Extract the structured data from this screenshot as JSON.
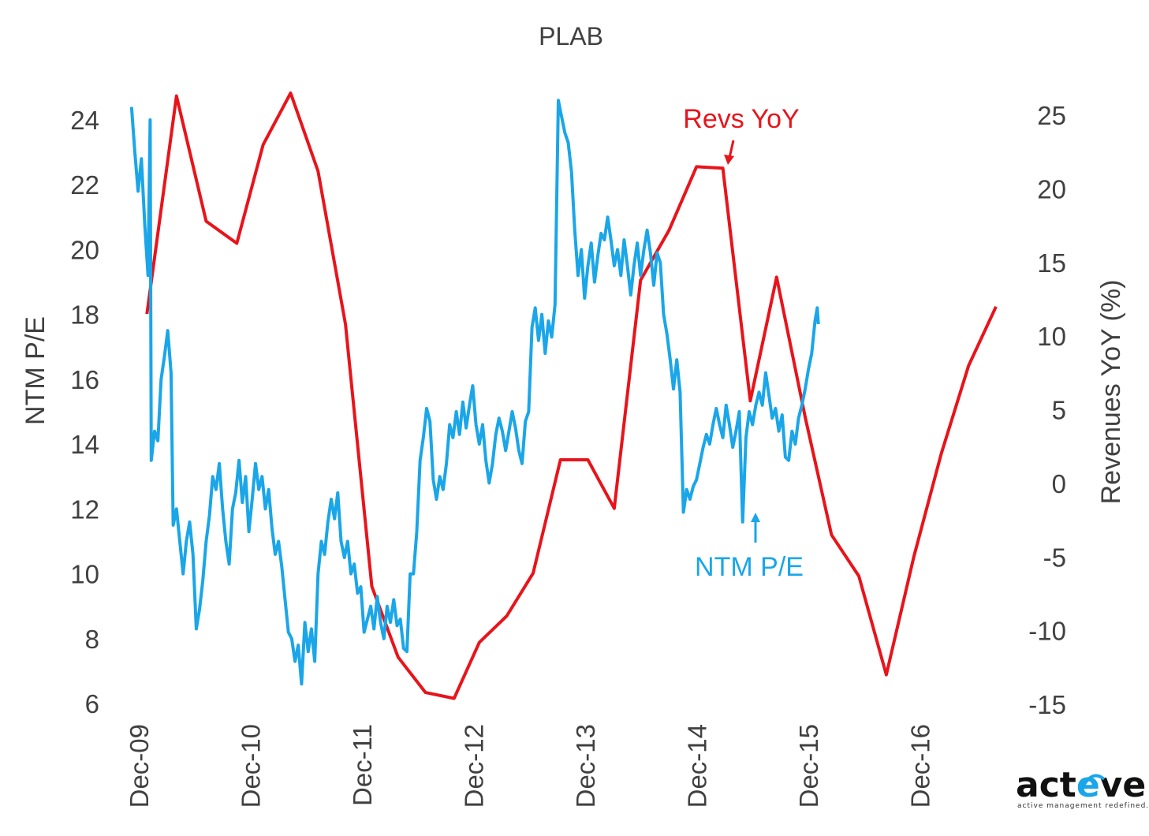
{
  "chart_data": {
    "type": "line",
    "title": "PLAB",
    "ylabel_left": "NTM P/E",
    "ylabel_right": "Revenues YoY (%)",
    "x_tick_labels": [
      "Dec-09",
      "Dec-10",
      "Dec-11",
      "Dec-12",
      "Dec-13",
      "Dec-14",
      "Dec-15",
      "Dec-16"
    ],
    "xlim_years": [
      2009.9,
      2017.85
    ],
    "ylim_left": [
      6,
      25
    ],
    "ylim_right": [
      -15,
      26
    ],
    "yticks_left": [
      6,
      8,
      10,
      12,
      14,
      16,
      18,
      20,
      22,
      24
    ],
    "yticks_right": [
      -15,
      -10,
      -5,
      0,
      5,
      10,
      15,
      20,
      25
    ],
    "grid": false,
    "series": [
      {
        "name": "NTM P/E",
        "axis": "left",
        "color": "#1aa6e8",
        "points": [
          [
            2009.92,
            24.4
          ],
          [
            2009.95,
            23.0
          ],
          [
            2009.98,
            21.8
          ],
          [
            2010.01,
            22.8
          ],
          [
            2010.04,
            20.8
          ],
          [
            2010.07,
            19.2
          ],
          [
            2010.09,
            24.0
          ],
          [
            2010.1,
            13.5
          ],
          [
            2010.13,
            14.4
          ],
          [
            2010.16,
            14.1
          ],
          [
            2010.19,
            16.0
          ],
          [
            2010.22,
            16.7
          ],
          [
            2010.25,
            17.5
          ],
          [
            2010.28,
            16.2
          ],
          [
            2010.3,
            11.5
          ],
          [
            2010.33,
            12.0
          ],
          [
            2010.36,
            11.0
          ],
          [
            2010.39,
            10.0
          ],
          [
            2010.42,
            11.0
          ],
          [
            2010.45,
            11.6
          ],
          [
            2010.48,
            10.6
          ],
          [
            2010.51,
            8.3
          ],
          [
            2010.54,
            8.9
          ],
          [
            2010.57,
            9.8
          ],
          [
            2010.6,
            11.0
          ],
          [
            2010.63,
            11.8
          ],
          [
            2010.66,
            13.0
          ],
          [
            2010.69,
            12.6
          ],
          [
            2010.72,
            13.4
          ],
          [
            2010.75,
            12.0
          ],
          [
            2010.78,
            11.0
          ],
          [
            2010.81,
            10.3
          ],
          [
            2010.84,
            12.0
          ],
          [
            2010.87,
            12.5
          ],
          [
            2010.9,
            13.5
          ],
          [
            2010.93,
            12.2
          ],
          [
            2010.96,
            13.0
          ],
          [
            2010.99,
            11.3
          ],
          [
            2011.02,
            12.3
          ],
          [
            2011.05,
            13.4
          ],
          [
            2011.08,
            12.6
          ],
          [
            2011.11,
            13.0
          ],
          [
            2011.14,
            12.0
          ],
          [
            2011.17,
            12.6
          ],
          [
            2011.2,
            11.4
          ],
          [
            2011.23,
            10.6
          ],
          [
            2011.26,
            11.0
          ],
          [
            2011.29,
            10.2
          ],
          [
            2011.32,
            9.2
          ],
          [
            2011.35,
            8.2
          ],
          [
            2011.38,
            8.0
          ],
          [
            2011.41,
            7.3
          ],
          [
            2011.44,
            7.8
          ],
          [
            2011.47,
            6.6
          ],
          [
            2011.5,
            8.5
          ],
          [
            2011.53,
            7.6
          ],
          [
            2011.56,
            8.3
          ],
          [
            2011.59,
            7.3
          ],
          [
            2011.62,
            10.0
          ],
          [
            2011.65,
            11.0
          ],
          [
            2011.68,
            10.6
          ],
          [
            2011.71,
            11.6
          ],
          [
            2011.74,
            12.3
          ],
          [
            2011.77,
            11.7
          ],
          [
            2011.8,
            12.5
          ],
          [
            2011.83,
            11.0
          ],
          [
            2011.86,
            10.5
          ],
          [
            2011.89,
            11.0
          ],
          [
            2011.92,
            10.0
          ],
          [
            2011.95,
            10.3
          ],
          [
            2011.98,
            9.4
          ],
          [
            2012.01,
            9.6
          ],
          [
            2012.04,
            8.2
          ],
          [
            2012.07,
            8.6
          ],
          [
            2012.1,
            9.0
          ],
          [
            2012.13,
            8.3
          ],
          [
            2012.16,
            9.3
          ],
          [
            2012.19,
            8.5
          ],
          [
            2012.22,
            8.0
          ],
          [
            2012.25,
            9.0
          ],
          [
            2012.28,
            8.5
          ],
          [
            2012.31,
            9.2
          ],
          [
            2012.34,
            8.4
          ],
          [
            2012.37,
            8.6
          ],
          [
            2012.4,
            7.7
          ],
          [
            2012.43,
            7.6
          ],
          [
            2012.46,
            10.0
          ],
          [
            2012.49,
            10.0
          ],
          [
            2012.52,
            11.3
          ],
          [
            2012.55,
            13.5
          ],
          [
            2012.58,
            14.2
          ],
          [
            2012.61,
            15.1
          ],
          [
            2012.64,
            14.7
          ],
          [
            2012.67,
            12.9
          ],
          [
            2012.7,
            12.3
          ],
          [
            2012.73,
            13.0
          ],
          [
            2012.76,
            12.6
          ],
          [
            2012.79,
            13.4
          ],
          [
            2012.82,
            14.6
          ],
          [
            2012.85,
            14.2
          ],
          [
            2012.88,
            15.0
          ],
          [
            2012.91,
            14.3
          ],
          [
            2012.94,
            15.3
          ],
          [
            2012.97,
            14.5
          ],
          [
            2013.0,
            15.2
          ],
          [
            2013.03,
            15.8
          ],
          [
            2013.06,
            14.6
          ],
          [
            2013.09,
            14.0
          ],
          [
            2013.12,
            14.6
          ],
          [
            2013.15,
            13.5
          ],
          [
            2013.18,
            12.8
          ],
          [
            2013.21,
            13.4
          ],
          [
            2013.24,
            14.3
          ],
          [
            2013.27,
            14.8
          ],
          [
            2013.3,
            14.4
          ],
          [
            2013.33,
            13.8
          ],
          [
            2013.36,
            14.4
          ],
          [
            2013.39,
            15.0
          ],
          [
            2013.42,
            14.5
          ],
          [
            2013.45,
            13.8
          ],
          [
            2013.48,
            13.4
          ],
          [
            2013.51,
            14.7
          ],
          [
            2013.54,
            15.0
          ],
          [
            2013.57,
            17.6
          ],
          [
            2013.6,
            18.2
          ],
          [
            2013.63,
            17.2
          ],
          [
            2013.66,
            18.0
          ],
          [
            2013.69,
            16.8
          ],
          [
            2013.72,
            17.8
          ],
          [
            2013.75,
            17.3
          ],
          [
            2013.78,
            18.3
          ],
          [
            2013.81,
            24.6
          ],
          [
            2013.84,
            24.1
          ],
          [
            2013.87,
            23.6
          ],
          [
            2013.9,
            23.3
          ],
          [
            2013.93,
            22.4
          ],
          [
            2013.96,
            20.6
          ],
          [
            2013.99,
            19.2
          ],
          [
            2014.02,
            20.0
          ],
          [
            2014.05,
            18.5
          ],
          [
            2014.08,
            19.5
          ],
          [
            2014.11,
            20.2
          ],
          [
            2014.14,
            19.0
          ],
          [
            2014.17,
            19.8
          ],
          [
            2014.2,
            20.5
          ],
          [
            2014.23,
            20.3
          ],
          [
            2014.26,
            21.0
          ],
          [
            2014.29,
            20.3
          ],
          [
            2014.32,
            19.5
          ],
          [
            2014.35,
            20.0
          ],
          [
            2014.38,
            19.2
          ],
          [
            2014.41,
            20.3
          ],
          [
            2014.44,
            19.5
          ],
          [
            2014.47,
            18.6
          ],
          [
            2014.5,
            19.5
          ],
          [
            2014.53,
            20.2
          ],
          [
            2014.56,
            19.2
          ],
          [
            2014.59,
            20.0
          ],
          [
            2014.62,
            20.6
          ],
          [
            2014.65,
            19.9
          ],
          [
            2014.68,
            18.9
          ],
          [
            2014.71,
            19.9
          ],
          [
            2014.74,
            19.6
          ],
          [
            2014.77,
            18.0
          ],
          [
            2014.8,
            17.4
          ],
          [
            2014.83,
            16.6
          ],
          [
            2014.86,
            15.7
          ],
          [
            2014.89,
            16.6
          ],
          [
            2014.92,
            15.6
          ],
          [
            2014.95,
            11.9
          ],
          [
            2014.98,
            12.6
          ],
          [
            2015.01,
            12.3
          ],
          [
            2015.04,
            12.7
          ],
          [
            2015.07,
            12.9
          ],
          [
            2015.1,
            13.4
          ],
          [
            2015.13,
            13.9
          ],
          [
            2015.16,
            14.3
          ],
          [
            2015.19,
            14.0
          ],
          [
            2015.22,
            14.6
          ],
          [
            2015.25,
            15.1
          ],
          [
            2015.28,
            14.6
          ],
          [
            2015.31,
            14.2
          ],
          [
            2015.34,
            15.2
          ],
          [
            2015.37,
            14.6
          ],
          [
            2015.4,
            13.9
          ],
          [
            2015.43,
            14.4
          ],
          [
            2015.46,
            15.0
          ],
          [
            2015.49,
            11.6
          ],
          [
            2015.52,
            14.2
          ],
          [
            2015.55,
            15.0
          ],
          [
            2015.58,
            14.6
          ],
          [
            2015.61,
            15.2
          ],
          [
            2015.64,
            15.6
          ],
          [
            2015.67,
            15.2
          ],
          [
            2015.7,
            16.2
          ],
          [
            2015.73,
            15.5
          ],
          [
            2015.76,
            14.8
          ],
          [
            2015.79,
            15.1
          ],
          [
            2015.82,
            14.4
          ],
          [
            2015.85,
            14.9
          ],
          [
            2015.88,
            13.6
          ],
          [
            2015.91,
            13.5
          ],
          [
            2015.94,
            14.4
          ],
          [
            2015.97,
            14.0
          ],
          [
            2016.0,
            14.8
          ],
          [
            2016.03,
            15.2
          ],
          [
            2016.06,
            15.7
          ],
          [
            2016.09,
            16.3
          ],
          [
            2016.12,
            16.8
          ],
          [
            2016.15,
            17.8
          ],
          [
            2016.17,
            18.2
          ],
          [
            2016.18,
            17.7
          ]
        ]
      },
      {
        "name": "Revs YoY",
        "axis": "right",
        "color": "#e8141b",
        "points": [
          [
            2010.06,
            11.5
          ],
          [
            2010.33,
            26.3
          ],
          [
            2010.6,
            17.8
          ],
          [
            2010.88,
            16.3
          ],
          [
            2011.12,
            23.0
          ],
          [
            2011.37,
            26.5
          ],
          [
            2011.62,
            21.2
          ],
          [
            2011.87,
            10.8
          ],
          [
            2012.11,
            -7.0
          ],
          [
            2012.35,
            -11.8
          ],
          [
            2012.6,
            -14.2
          ],
          [
            2012.86,
            -14.6
          ],
          [
            2013.09,
            -10.8
          ],
          [
            2013.34,
            -9.0
          ],
          [
            2013.58,
            -6.1
          ],
          [
            2013.83,
            1.6
          ],
          [
            2014.08,
            1.6
          ],
          [
            2014.32,
            -1.7
          ],
          [
            2014.56,
            13.8
          ],
          [
            2014.82,
            17.2
          ],
          [
            2015.07,
            21.5
          ],
          [
            2015.31,
            21.4
          ],
          [
            2015.56,
            5.6
          ],
          [
            2015.8,
            14.0
          ],
          [
            2016.06,
            4.5
          ],
          [
            2016.3,
            -3.5
          ],
          [
            2016.55,
            -6.3
          ],
          [
            2016.8,
            -13.0
          ],
          [
            2017.05,
            -5.0
          ],
          [
            2017.3,
            2.0
          ],
          [
            2017.55,
            8.0
          ],
          [
            2017.8,
            12.0
          ]
        ]
      }
    ],
    "annotations": [
      {
        "text": "Revs YoY",
        "series": "Revs YoY"
      },
      {
        "text": "NTM P/E",
        "series": "NTM P/E"
      }
    ]
  },
  "logo": {
    "text_left": "act",
    "text_mid": "e",
    "text_right": "ve",
    "tagline": "active  management redefined.",
    "accent_color": "#1aa6e8"
  }
}
